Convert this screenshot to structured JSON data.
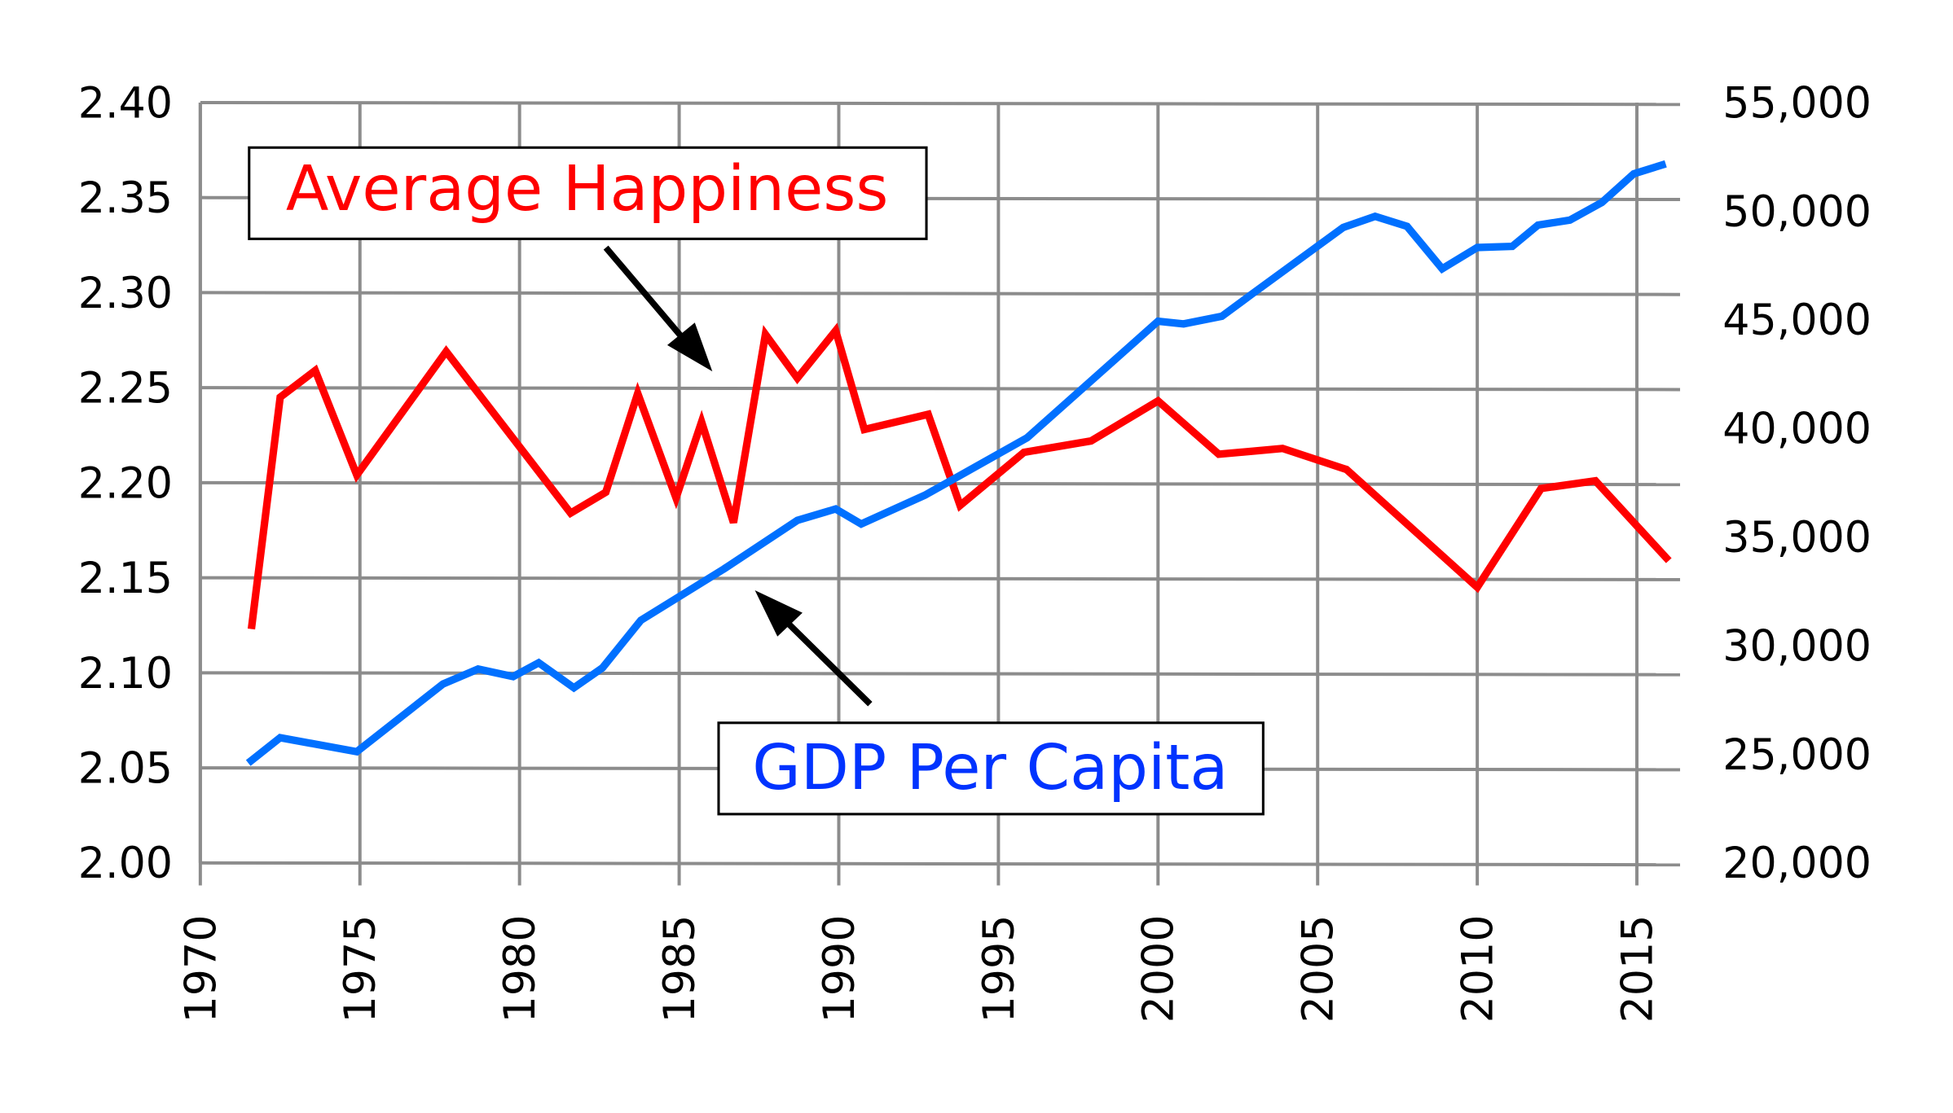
{
  "chart_data": {
    "type": "line",
    "title": "",
    "xlabel": "",
    "ylabel_left": "",
    "ylabel_right": "",
    "xlim": [
      1970,
      2016
    ],
    "ylim_left": [
      2.0,
      2.4
    ],
    "ylim_right": [
      20000,
      55000
    ],
    "grid": true,
    "x_ticks": [
      "1970",
      "1975",
      "1980",
      "1985",
      "1990",
      "1995",
      "2000",
      "2005",
      "2010",
      "2015"
    ],
    "y_left_ticks": [
      "2.00",
      "2.05",
      "2.10",
      "2.15",
      "2.20",
      "2.25",
      "2.30",
      "2.35",
      "2.40"
    ],
    "y_right_ticks": [
      "20,000",
      "25,000",
      "30,000",
      "35,000",
      "40,000",
      "45,000",
      "50,000",
      "55,000"
    ],
    "series": [
      {
        "name": "Average Happiness",
        "axis": "left",
        "color": "#ff0000",
        "label_color": "#ff0000",
        "x": [
          1971.6,
          1972.5,
          1973.6,
          1974.9,
          1977.7,
          1981.6,
          1982.7,
          1983.7,
          1984.9,
          1985.7,
          1986.7,
          1987.7,
          1988.7,
          1989.9,
          1990.8,
          1992.8,
          1993.8,
          1995.8,
          1997.9,
          2000.0,
          2001.9,
          2003.9,
          2005.9,
          2010.0,
          2012.0,
          2013.7,
          2016.0
        ],
        "y": [
          2.123,
          2.245,
          2.259,
          2.204,
          2.269,
          2.184,
          2.195,
          2.247,
          2.192,
          2.232,
          2.179,
          2.278,
          2.255,
          2.28,
          2.228,
          2.236,
          2.188,
          2.216,
          2.222,
          2.243,
          2.215,
          2.218,
          2.207,
          2.145,
          2.197,
          2.201,
          2.159
        ]
      },
      {
        "name": "GDP Per Capita",
        "axis": "right",
        "color": "#0070ff",
        "label_color": "#0033ff",
        "x": [
          1971.5,
          1972.5,
          1974.9,
          1977.6,
          1978.7,
          1979.8,
          1980.6,
          1981.7,
          1982.6,
          1983.8,
          1986.4,
          1988.7,
          1989.9,
          1990.7,
          1992.7,
          1995.9,
          2000.0,
          2000.8,
          2002.0,
          2002.9,
          2005.8,
          2006.8,
          2007.8,
          2008.9,
          2010.0,
          2011.1,
          2011.9,
          2012.9,
          2013.9,
          2014.9,
          2015.9
        ],
        "y": [
          24600,
          25760,
          25120,
          28230,
          28920,
          28580,
          29210,
          28060,
          28980,
          31170,
          33530,
          35770,
          36290,
          35600,
          36930,
          39570,
          44930,
          44810,
          45160,
          46140,
          49250,
          49760,
          49300,
          47350,
          48330,
          48380,
          49360,
          49590,
          50400,
          51720,
          52180
        ]
      }
    ]
  }
}
